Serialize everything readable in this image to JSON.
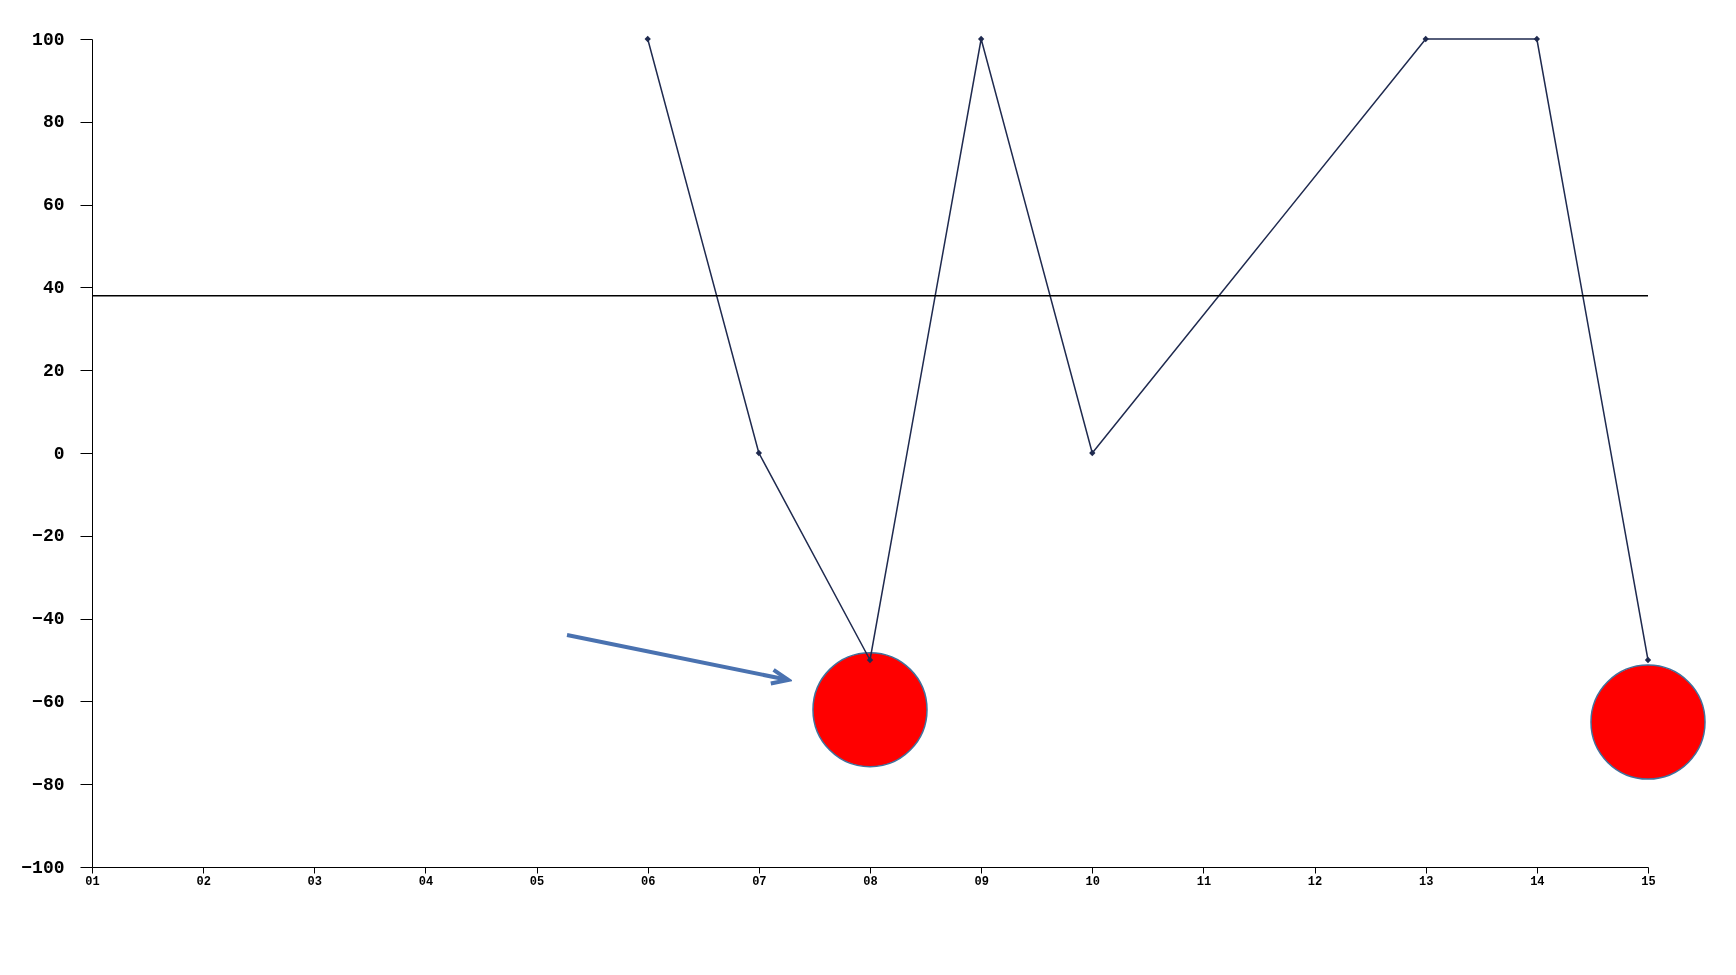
{
  "chart_data": {
    "type": "line",
    "categories": [
      "01",
      "02",
      "03",
      "04",
      "05",
      "06",
      "07",
      "08",
      "09",
      "10",
      "11",
      "12",
      "13",
      "14",
      "15"
    ],
    "series": [
      {
        "color": "#1f2a4f",
        "marker": "diamond",
        "values": [
          null,
          null,
          null,
          null,
          null,
          100,
          0,
          -50,
          100,
          0,
          null,
          null,
          100,
          100,
          -50
        ]
      },
      {
        "type": "scatter",
        "color": "#ff0000",
        "x": [
          "08",
          "15"
        ],
        "values": [
          -62,
          -65
        ]
      }
    ],
    "ylim": [
      -100,
      100
    ],
    "yticks": [
      -100,
      -80,
      -60,
      -40,
      -20,
      0,
      20,
      40,
      60,
      80,
      100
    ],
    "ref_lines": [
      {
        "axis": "y",
        "value": 38,
        "color": "#000000"
      }
    ],
    "grid": false
  }
}
